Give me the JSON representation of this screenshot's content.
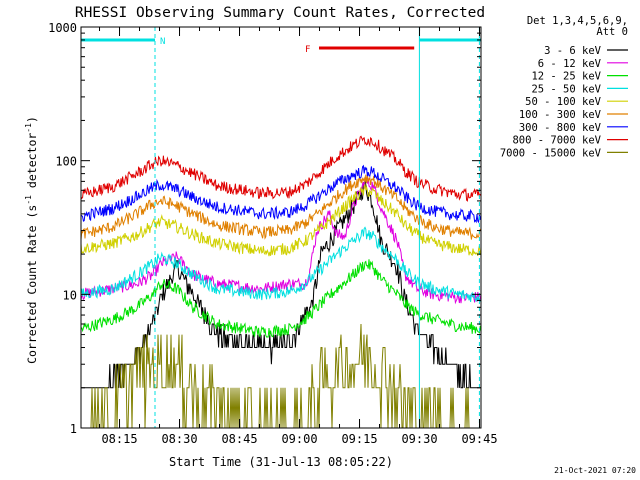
{
  "chart_data": {
    "type": "line",
    "title": "RHESSI Observing Summary Count Rates, Corrected",
    "xlabel": "Start Time (31-Jul-13 08:05:22)",
    "ylabel_main": "Corrected Count Rate (s",
    "ylabel_sup1": "-1",
    "ylabel_mid": " detector",
    "ylabel_sup2": "-1",
    "ylabel_end": ")",
    "y_scale": "log",
    "ylim": [
      1,
      1000
    ],
    "xlim_minutes": [
      0,
      100
    ],
    "x_ticks": [
      {
        "label": "08:15",
        "minute": 9.63
      },
      {
        "label": "08:30",
        "minute": 24.63
      },
      {
        "label": "08:45",
        "minute": 39.63
      },
      {
        "label": "09:00",
        "minute": 54.63
      },
      {
        "label": "09:15",
        "minute": 69.63
      },
      {
        "label": "09:30",
        "minute": 84.63
      },
      {
        "label": "09:45",
        "minute": 99.63
      }
    ],
    "y_ticks": [
      {
        "label": "1000",
        "value": 1000
      },
      {
        "label": "100",
        "value": 100
      },
      {
        "label": "10",
        "value": 10
      },
      {
        "label": "1",
        "value": 1
      }
    ],
    "legend_header": [
      "Det 1,3,4,5,6,9,",
      "Att 0"
    ],
    "legend_position": "right",
    "series": [
      {
        "name": "3 - 6 keV",
        "color": "#000000",
        "x": [
          0,
          8,
          14,
          18,
          20,
          24,
          28,
          34,
          45,
          52,
          56,
          58,
          60,
          64,
          68,
          71,
          73,
          75,
          79,
          81,
          84,
          88,
          94,
          100
        ],
        "y": [
          2,
          2.2,
          3.5,
          6,
          9.5,
          16,
          10,
          5,
          4,
          4.2,
          7,
          9,
          20,
          30,
          45,
          65,
          48,
          25,
          16,
          9,
          5.5,
          4,
          2.5,
          2
        ]
      },
      {
        "name": "6 - 12 keV",
        "color": "#e000e0",
        "x": [
          0,
          8,
          14,
          18,
          20,
          24,
          28,
          34,
          45,
          52,
          56,
          57,
          59,
          62,
          64,
          66,
          68,
          71,
          73,
          75,
          79,
          81,
          84,
          88,
          94,
          100
        ],
        "y": [
          10,
          11,
          12,
          14,
          17,
          19,
          14,
          12,
          11,
          12,
          12,
          14,
          30,
          40,
          28,
          27,
          45,
          70,
          65,
          45,
          25,
          14,
          11,
          10,
          9.5,
          9.5
        ]
      },
      {
        "name": "12 - 25 keV",
        "color": "#00e000",
        "x": [
          0,
          8,
          14,
          18,
          20,
          24,
          28,
          34,
          45,
          52,
          56,
          60,
          64,
          68,
          71,
          73,
          75,
          79,
          81,
          84,
          88,
          94,
          100
        ],
        "y": [
          5.5,
          6.5,
          8,
          10,
          12,
          11,
          8,
          6,
          5.2,
          5.5,
          6.5,
          8.5,
          11,
          14,
          17,
          16,
          13,
          10,
          8.5,
          7.2,
          6.5,
          5.8,
          5.5
        ]
      },
      {
        "name": "25 - 50 keV",
        "color": "#00e0e0",
        "x": [
          0,
          8,
          14,
          18,
          20,
          24,
          28,
          34,
          45,
          52,
          56,
          60,
          64,
          68,
          71,
          73,
          75,
          79,
          81,
          84,
          88,
          94,
          100
        ],
        "y": [
          10,
          11,
          14,
          17,
          19,
          17,
          14,
          11,
          10,
          10.5,
          12,
          15.5,
          20,
          25,
          29,
          27,
          23,
          18,
          15,
          12.5,
          11,
          10,
          9.5
        ]
      },
      {
        "name": "50 - 100 keV",
        "color": "#d0d000",
        "x": [
          0,
          8,
          14,
          18,
          20,
          24,
          28,
          34,
          45,
          52,
          56,
          60,
          64,
          68,
          71,
          73,
          75,
          79,
          81,
          84,
          88,
          94,
          100
        ],
        "y": [
          22,
          24,
          28,
          33,
          35,
          32,
          28,
          24,
          21,
          22,
          25,
          31,
          40,
          52,
          60,
          58,
          50,
          40,
          33,
          28,
          24,
          22,
          21
        ]
      },
      {
        "name": "100 - 300 keV",
        "color": "#e08000",
        "x": [
          0,
          8,
          14,
          18,
          20,
          24,
          28,
          34,
          45,
          52,
          56,
          60,
          64,
          68,
          71,
          73,
          75,
          79,
          81,
          84,
          88,
          94,
          100
        ],
        "y": [
          28,
          32,
          40,
          48,
          50,
          46,
          40,
          33,
          29,
          30,
          34,
          42,
          54,
          67,
          75,
          72,
          64,
          52,
          44,
          37,
          32,
          29,
          28
        ]
      },
      {
        "name": "300 - 800 keV",
        "color": "#0000ff",
        "x": [
          0,
          8,
          14,
          18,
          20,
          24,
          28,
          34,
          45,
          52,
          56,
          60,
          64,
          68,
          71,
          73,
          75,
          79,
          81,
          84,
          88,
          94,
          100
        ],
        "y": [
          38,
          44,
          54,
          63,
          66,
          61,
          53,
          45,
          40,
          41,
          46,
          56,
          68,
          78,
          84,
          82,
          74,
          62,
          54,
          46,
          42,
          39,
          38
        ]
      },
      {
        "name": "800 - 7000 keV",
        "color": "#e00000",
        "x": [
          0,
          8,
          14,
          18,
          20,
          24,
          28,
          34,
          45,
          52,
          56,
          60,
          64,
          68,
          71,
          73,
          75,
          79,
          81,
          84,
          88,
          94,
          100
        ],
        "y": [
          55,
          64,
          80,
          95,
          100,
          92,
          80,
          65,
          57,
          58,
          66,
          84,
          108,
          130,
          145,
          140,
          125,
          100,
          84,
          70,
          62,
          56,
          55
        ]
      },
      {
        "name": "7000 - 15000 keV",
        "color": "#808000",
        "x": [
          0,
          8,
          14,
          18,
          20,
          24,
          28,
          34,
          40,
          45,
          52,
          56,
          60,
          64,
          68,
          71,
          73,
          75,
          79,
          81,
          84,
          88,
          94,
          100
        ],
        "y": [
          1,
          1.5,
          2.5,
          3,
          3,
          2.7,
          2,
          1.5,
          1.2,
          1,
          1,
          1.2,
          2,
          2.8,
          3.2,
          3.5,
          3.2,
          2.8,
          2,
          1.6,
          1.3,
          1.1,
          1,
          1
        ]
      }
    ],
    "annotations": {
      "n_label": "N",
      "f_label": "F",
      "n_bars": [
        {
          "start_minute": 0,
          "end_minute": 18.5
        },
        {
          "start_minute": 84.6,
          "end_minute": 100
        }
      ],
      "f_bar": {
        "start_minute": 59.5,
        "end_minute": 83.3
      },
      "vlines_minutes": [
        18.5,
        84.6,
        99.6
      ]
    },
    "grid": false
  },
  "footer": {
    "timestamp": "21-Oct-2021 07:20"
  },
  "colors": {
    "n_bar": "#00e0e0",
    "f_bar": "#e00000",
    "axis": "#000000"
  }
}
